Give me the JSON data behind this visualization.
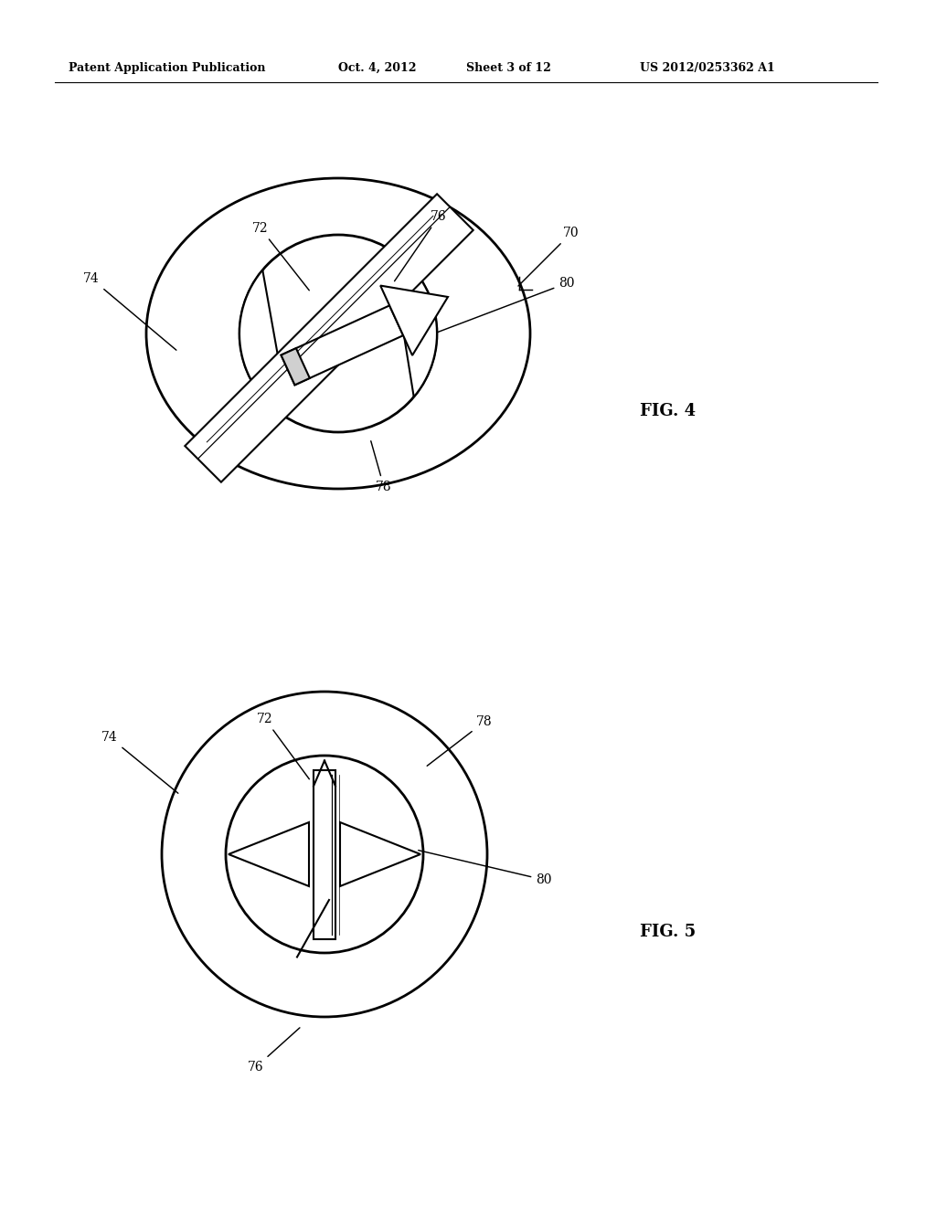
{
  "bg_color": "#ffffff",
  "lc": "#000000",
  "header_left": "Patent Application Publication",
  "header_mid1": "Oct. 4, 2012",
  "header_mid2": "Sheet 3 of 12",
  "header_right": "US 2012/0253362 A1",
  "fig4_label": "FIG. 4",
  "fig5_label": "FIG. 5",
  "lw": 1.5
}
